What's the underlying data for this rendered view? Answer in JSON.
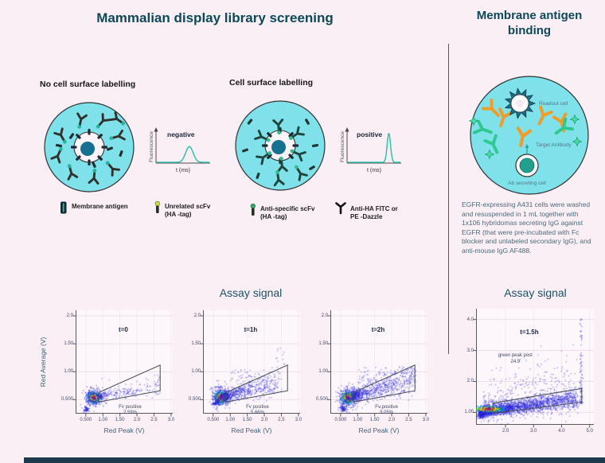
{
  "header": {
    "left_title": "Mammalian display library screening",
    "right_title": "Membrane antigen binding"
  },
  "panels": {
    "no_label": {
      "heading": "No cell surface labelling"
    },
    "label": {
      "heading": "Cell surface labelling"
    }
  },
  "legend": [
    {
      "icon": "membrane-antigen",
      "label": "Membrane antigen",
      "label2": ""
    },
    {
      "icon": "unrelated-scfv",
      "label": "Unrelated scFv",
      "label2": "(HA -tag)"
    },
    {
      "icon": "anti-specific-scfv",
      "label": "Anti-specific scFv",
      "label2": "(HA -tag)"
    },
    {
      "icon": "anti-ha-antibody",
      "label": "Anti-HA FITC or",
      "label2": "PE -Dazzle"
    }
  ],
  "assay": {
    "left_title": "Assay signal",
    "right_title": "Assay signal"
  },
  "right_panel": {
    "readout_cell": "Readout cell",
    "target_antibody": "Target Antibody",
    "ab_secreting_cell": "Ab secreting cell",
    "description": "EGFR-expressing A431 cells were washed and resuspended in 1 mL together with 1x106 hybridomas secreting IgG against EGFR (that were pre-incubated with Fc blocker and unlabeled secondary IgG), and anti-mouse IgG AF488."
  },
  "colors": {
    "accent_teal": "#0d4956",
    "droplet_cyan": "#7fe1e9",
    "curve_teal": "#31c3ad",
    "scatter_blue": "#2722d8",
    "orange_antibody": "#f09c28",
    "green_antibody": "#2ec98e"
  },
  "chart_data": [
    {
      "type": "line",
      "id": "pulse-negative",
      "title": "negative",
      "xlabel": "t (ms)",
      "ylabel": "Fluorescence",
      "peak": {
        "center": 0.62,
        "width": 0.1,
        "height": 0.52
      }
    },
    {
      "type": "line",
      "id": "pulse-positive",
      "title": "positive",
      "xlabel": "t (ms)",
      "ylabel": "Fluorescence",
      "peak": {
        "center": 0.78,
        "width": 0.045,
        "height": 0.97
      }
    },
    {
      "type": "scatter",
      "id": "flow-t0",
      "title": "t=0",
      "xlabel": "Red Peak (V)",
      "ylabel": "Red Average (V)",
      "xlim": [
        0.2,
        3.05
      ],
      "ylim": [
        0.25,
        2.1
      ],
      "x_ticks": [
        0.5,
        1.0,
        1.5,
        2.0,
        2.5,
        3.0
      ],
      "x_tick_labels": [
        "0.500",
        "1.00",
        "1.50",
        "2.0",
        "2.5",
        "3.0"
      ],
      "y_ticks": [
        0.5,
        1.0,
        1.5,
        2.0
      ],
      "y_tick_labels": [
        "0.500",
        "1.00",
        "1.50",
        "2.0"
      ],
      "title_pos": [
        1.6,
        1.82
      ],
      "gate": {
        "label_lines": [
          "Fv positive",
          "2.59%"
        ],
        "label_pos": [
          1.8,
          0.41
        ],
        "polygon": [
          [
            0.88,
            0.46
          ],
          [
            2.68,
            0.66
          ],
          [
            2.68,
            1.12
          ],
          [
            0.88,
            0.63
          ]
        ]
      },
      "clusters": [
        {
          "kind": "gauss",
          "cx": 0.72,
          "cy": 0.545,
          "sx": 0.068,
          "sy": 0.04,
          "n": 1100,
          "heat": true
        },
        {
          "kind": "gauss",
          "cx": 0.72,
          "cy": 0.545,
          "sx": 0.14,
          "sy": 0.09,
          "n": 250,
          "heat": false
        },
        {
          "kind": "band",
          "x0": 0.88,
          "y0": 0.57,
          "x1": 2.5,
          "y1": 0.72,
          "sx": 0.05,
          "sy": 0.05,
          "n": 200,
          "bias": 2.6
        },
        {
          "kind": "gauss",
          "cx": 0.5,
          "cy": 0.335,
          "sx": 0.045,
          "sy": 0.028,
          "n": 60,
          "heat": false
        },
        {
          "kind": "scatter",
          "x0": 2.5,
          "x1": 2.66,
          "y0": 0.6,
          "y1": 0.95,
          "n": 25
        },
        {
          "kind": "scatter",
          "x0": 0.95,
          "x1": 2.4,
          "y0": 0.6,
          "y1": 0.9,
          "n": 28
        }
      ]
    },
    {
      "type": "scatter",
      "id": "flow-t1h",
      "title": "t=1h",
      "xlabel": "Red Peak (V)",
      "ylabel": null,
      "xlim": [
        0.2,
        3.05
      ],
      "ylim": [
        0.25,
        2.1
      ],
      "x_ticks": [
        0.5,
        1.0,
        1.5,
        2.0,
        2.5,
        3.0
      ],
      "x_tick_labels": [
        "0.500",
        "1.00",
        "1.50",
        "2.0",
        "2.5",
        "3.0"
      ],
      "y_ticks": [
        0.5,
        1.0,
        1.5,
        2.0
      ],
      "y_tick_labels": [
        "0.500",
        "1.00",
        "1.50",
        "2.0"
      ],
      "title_pos": [
        1.6,
        1.82
      ],
      "gate": {
        "label_lines": [
          "Fv positive",
          "5.66%"
        ],
        "label_pos": [
          1.8,
          0.41
        ],
        "polygon": [
          [
            0.88,
            0.46
          ],
          [
            2.68,
            0.66
          ],
          [
            2.68,
            1.12
          ],
          [
            0.88,
            0.63
          ]
        ]
      },
      "clusters": [
        {
          "kind": "gauss",
          "cx": 0.71,
          "cy": 0.55,
          "sx": 0.07,
          "sy": 0.042,
          "n": 1100,
          "heat": true
        },
        {
          "kind": "gauss",
          "cx": 0.73,
          "cy": 0.56,
          "sx": 0.15,
          "sy": 0.1,
          "n": 300,
          "heat": false
        },
        {
          "kind": "band",
          "x0": 0.5,
          "y0": 0.43,
          "x1": 0.68,
          "y1": 0.52,
          "sx": 0.03,
          "sy": 0.025,
          "n": 90,
          "bias": 1.0
        },
        {
          "kind": "band",
          "x0": 0.85,
          "y0": 0.58,
          "x1": 2.35,
          "y1": 0.8,
          "sx": 0.05,
          "sy": 0.08,
          "n": 520,
          "bias": 2.1
        },
        {
          "kind": "scatter",
          "x0": 1.0,
          "x1": 2.5,
          "y0": 0.65,
          "y1": 1.05,
          "n": 110
        },
        {
          "kind": "scatter",
          "x0": 2.3,
          "x1": 2.6,
          "y0": 0.9,
          "y1": 1.45,
          "n": 12
        }
      ]
    },
    {
      "type": "scatter",
      "id": "flow-t2h",
      "title": "t=2h",
      "xlabel": "Red Peak (V)",
      "ylabel": null,
      "xlim": [
        0.2,
        3.05
      ],
      "ylim": [
        0.25,
        2.1
      ],
      "x_ticks": [
        0.5,
        1.0,
        1.5,
        2.0,
        2.5,
        3.0
      ],
      "x_tick_labels": [
        "0.500",
        "1.00",
        "1.50",
        "2.0",
        "2.5",
        "3.0"
      ],
      "y_ticks": [
        0.5,
        1.0,
        1.5,
        2.0
      ],
      "y_tick_labels": [
        "0.500",
        "1.00",
        "1.50",
        "2.0"
      ],
      "title_pos": [
        1.6,
        1.82
      ],
      "gate": {
        "label_lines": [
          "Fv positive",
          "9.05%"
        ],
        "label_pos": [
          1.85,
          0.41
        ],
        "polygon": [
          [
            0.88,
            0.46
          ],
          [
            2.68,
            0.66
          ],
          [
            2.68,
            1.12
          ],
          [
            0.88,
            0.63
          ]
        ]
      },
      "clusters": [
        {
          "kind": "gauss",
          "cx": 0.7,
          "cy": 0.545,
          "sx": 0.07,
          "sy": 0.042,
          "n": 1100,
          "heat": true
        },
        {
          "kind": "gauss",
          "cx": 0.72,
          "cy": 0.55,
          "sx": 0.15,
          "sy": 0.1,
          "n": 300,
          "heat": false
        },
        {
          "kind": "gauss",
          "cx": 0.56,
          "cy": 0.35,
          "sx": 0.05,
          "sy": 0.032,
          "n": 80,
          "heat": false
        },
        {
          "kind": "band",
          "x0": 0.88,
          "y0": 0.58,
          "x1": 2.6,
          "y1": 0.85,
          "sx": 0.05,
          "sy": 0.09,
          "n": 700,
          "bias": 2.0
        },
        {
          "kind": "scatter",
          "x0": 1.0,
          "x1": 2.7,
          "y0": 0.65,
          "y1": 1.1,
          "n": 150
        },
        {
          "kind": "scatter",
          "x0": 2.5,
          "x1": 2.7,
          "y0": 0.7,
          "y1": 1.1,
          "n": 30
        }
      ]
    },
    {
      "type": "scatter",
      "id": "flow-t15",
      "title": "t=1.5h",
      "xlabel": null,
      "ylabel": null,
      "xlim": [
        0.95,
        5.15
      ],
      "ylim": [
        0.6,
        4.35
      ],
      "x_ticks": [
        2.0,
        3.0,
        4.0,
        5.0
      ],
      "x_tick_labels": [
        "2.0",
        "3.0",
        "4.0",
        "5.0"
      ],
      "y_ticks": [
        1.0,
        2.0,
        3.0,
        4.0
      ],
      "y_tick_labels": [
        "1.00",
        "2.0",
        "3.0",
        "4.0"
      ],
      "title_pos": [
        2.85,
        3.72
      ],
      "annotation": {
        "lines": [
          "green peak post",
          "24.9"
        ],
        "pos": [
          2.35,
          2.9
        ]
      },
      "gate": {
        "label_lines": null,
        "label_pos": null,
        "polygon": [
          [
            1.55,
            0.97
          ],
          [
            4.72,
            1.33
          ],
          [
            4.72,
            1.77
          ],
          [
            1.55,
            1.3
          ]
        ]
      },
      "clusters": [
        {
          "kind": "band",
          "x0": 1.12,
          "y0": 1.03,
          "x1": 4.55,
          "y1": 1.45,
          "sx": 0.05,
          "sy": 0.11,
          "n": 2600,
          "bias": 1.9
        },
        {
          "kind": "gauss",
          "cx": 1.38,
          "cy": 1.12,
          "sx": 0.22,
          "sy": 0.04,
          "n": 650,
          "heat": true
        },
        {
          "kind": "band",
          "x0": 1.25,
          "y0": 1.15,
          "x1": 4.3,
          "y1": 1.75,
          "sx": 0.08,
          "sy": 0.3,
          "n": 450,
          "bias": 2.4
        },
        {
          "kind": "gauss",
          "cx": 1.1,
          "cy": 0.95,
          "sx": 0.06,
          "sy": 0.06,
          "n": 140,
          "heat": false
        },
        {
          "kind": "vline",
          "x": 4.68,
          "sx": 0.025,
          "y0": 1.3,
          "y1": 4.1,
          "n": 85,
          "bias": 1.7
        },
        {
          "kind": "scatter",
          "x0": 1.4,
          "x1": 4.5,
          "y0": 1.7,
          "y1": 2.5,
          "n": 70
        },
        {
          "kind": "scatter",
          "x0": 2.5,
          "x1": 4.6,
          "y0": 2.3,
          "y1": 3.2,
          "n": 14
        }
      ]
    }
  ]
}
